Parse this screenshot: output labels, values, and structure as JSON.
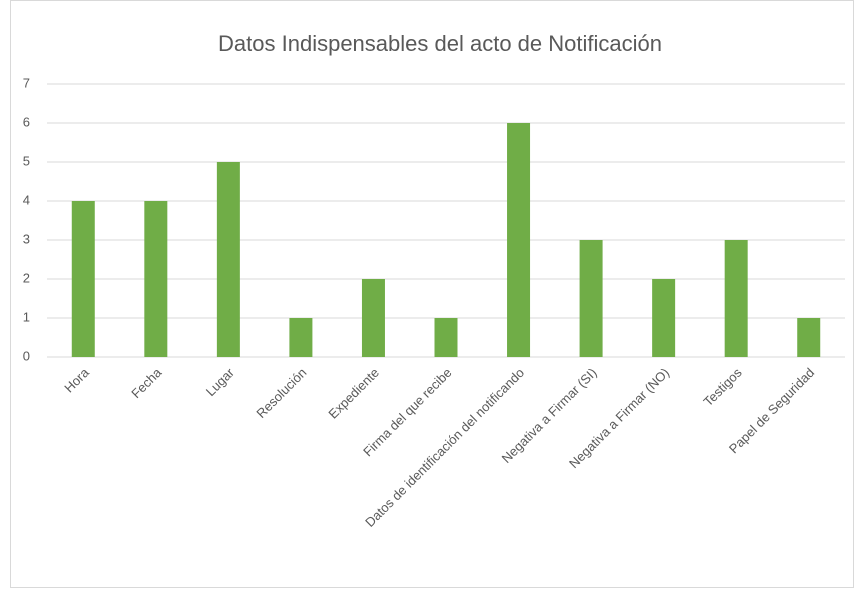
{
  "chart_data": {
    "type": "bar",
    "title": "Datos Indispensables del acto de Notificación",
    "categories": [
      "Hora",
      "Fecha",
      "Lugar",
      "Resolución",
      "Expediente",
      "Firma del que recibe",
      "Datos de identificación del notificando",
      "Negativa a Firmar (SI)",
      "Negativa a Firmar (NO)",
      "Testigos",
      "Papel de Seguridad"
    ],
    "values": [
      4,
      4,
      5,
      1,
      2,
      1,
      6,
      3,
      2,
      3,
      1
    ],
    "color": "#70ad47",
    "ylim": [
      0,
      7
    ],
    "yticks": [
      0,
      1,
      2,
      3,
      4,
      5,
      6,
      7
    ],
    "grid": true
  }
}
